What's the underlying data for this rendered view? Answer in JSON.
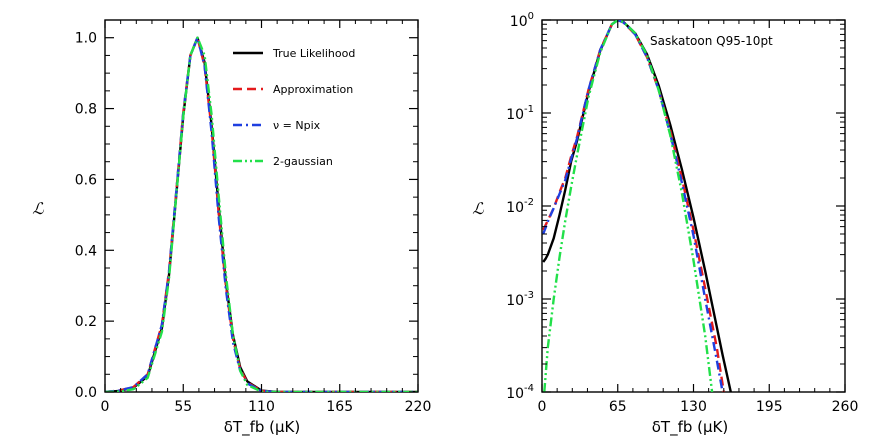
{
  "chart_data": [
    {
      "type": "line",
      "xlabel": "δT_fb (μK)",
      "ylabel": "ℒ",
      "xlim": [
        0,
        220
      ],
      "ylim": [
        0,
        1.05
      ],
      "yscale": "linear",
      "xticks": [
        "0",
        "55",
        "110",
        "165",
        "220"
      ],
      "yticks": [
        "0.0",
        "0.2",
        "0.4",
        "0.6",
        "0.8",
        "1.0"
      ],
      "legend": [
        "True Likelihood",
        "Approximation",
        "ν = Npix",
        "2-gaussian"
      ],
      "legend_position": "top-right",
      "series": [
        {
          "name": "True Likelihood",
          "color": "#000000",
          "style": "solid",
          "x": [
            0,
            10,
            20,
            30,
            40,
            45,
            50,
            55,
            60,
            65,
            70,
            75,
            80,
            85,
            90,
            95,
            100,
            110,
            120,
            130,
            140,
            150,
            220
          ],
          "y": [
            0,
            0.003,
            0.012,
            0.045,
            0.18,
            0.33,
            0.55,
            0.78,
            0.95,
            1.0,
            0.93,
            0.75,
            0.52,
            0.31,
            0.16,
            0.07,
            0.03,
            0.004,
            0.0005,
            0,
            0,
            0,
            0
          ]
        },
        {
          "name": "Approximation",
          "color": "#e41a1c",
          "style": "dashed",
          "x": [
            0,
            10,
            20,
            30,
            40,
            45,
            50,
            55,
            60,
            65,
            70,
            75,
            80,
            85,
            90,
            95,
            100,
            110,
            120,
            130,
            140,
            150,
            220
          ],
          "y": [
            0,
            0.004,
            0.014,
            0.05,
            0.19,
            0.34,
            0.56,
            0.79,
            0.95,
            1.0,
            0.92,
            0.74,
            0.5,
            0.3,
            0.15,
            0.065,
            0.027,
            0.003,
            0.0003,
            0,
            0,
            0,
            0
          ]
        },
        {
          "name": "ν = Npix",
          "color": "#1f3fe0",
          "style": "dashdot",
          "x": [
            0,
            10,
            20,
            30,
            40,
            45,
            50,
            55,
            60,
            65,
            70,
            75,
            80,
            85,
            90,
            95,
            100,
            110,
            120,
            130,
            140,
            150,
            220
          ],
          "y": [
            0,
            0.004,
            0.014,
            0.05,
            0.19,
            0.34,
            0.56,
            0.79,
            0.95,
            1.0,
            0.92,
            0.73,
            0.49,
            0.29,
            0.14,
            0.06,
            0.024,
            0.003,
            0.0003,
            0,
            0,
            0,
            0
          ]
        },
        {
          "name": "2-gaussian",
          "color": "#22e04a",
          "style": "dashdotdot",
          "x": [
            0,
            10,
            20,
            30,
            40,
            45,
            50,
            55,
            60,
            65,
            70,
            75,
            80,
            85,
            90,
            95,
            100,
            110,
            120,
            130,
            140,
            150,
            220
          ],
          "y": [
            0,
            0.001,
            0.008,
            0.04,
            0.17,
            0.32,
            0.55,
            0.78,
            0.95,
            1.0,
            0.95,
            0.78,
            0.55,
            0.33,
            0.16,
            0.06,
            0.02,
            0.001,
            0,
            0,
            0,
            0,
            0
          ]
        }
      ]
    },
    {
      "type": "line",
      "xlabel": "δT_fb (μK)",
      "ylabel": "ℒ",
      "xlim": [
        0,
        260
      ],
      "ylim": [
        0.0001,
        1
      ],
      "yscale": "log",
      "xticks": [
        "0",
        "65",
        "130",
        "195",
        "260"
      ],
      "yticks": [
        {
          "base": "10",
          "exp": "0"
        },
        {
          "base": "10",
          "exp": "-1"
        },
        {
          "base": "10",
          "exp": "-2"
        },
        {
          "base": "10",
          "exp": "-3"
        },
        {
          "base": "10",
          "exp": "-4"
        }
      ],
      "annotation": "Saskatoon Q95-10pt",
      "series": [
        {
          "name": "True Likelihood",
          "color": "#000000",
          "style": "solid",
          "x": [
            1,
            3,
            5,
            10,
            15,
            20,
            25,
            30,
            40,
            50,
            60,
            65,
            70,
            80,
            90,
            100,
            110,
            120,
            130,
            140,
            150,
            155,
            162
          ],
          "y": [
            0.0025,
            0.0027,
            0.003,
            0.0045,
            0.008,
            0.015,
            0.03,
            0.05,
            0.17,
            0.47,
            0.9,
            1.0,
            0.95,
            0.72,
            0.43,
            0.2,
            0.075,
            0.025,
            0.0075,
            0.002,
            0.0005,
            0.00025,
            0.0001
          ]
        },
        {
          "name": "Approximation",
          "color": "#e41a1c",
          "style": "dashed",
          "x": [
            1,
            3,
            5,
            10,
            15,
            20,
            25,
            30,
            40,
            50,
            60,
            65,
            70,
            80,
            90,
            100,
            110,
            120,
            130,
            140,
            150,
            156
          ],
          "y": [
            0.0055,
            0.0062,
            0.007,
            0.0095,
            0.014,
            0.02,
            0.034,
            0.055,
            0.18,
            0.48,
            0.9,
            1.0,
            0.94,
            0.7,
            0.4,
            0.18,
            0.065,
            0.02,
            0.0055,
            0.0013,
            0.0003,
            0.0001
          ]
        },
        {
          "name": "ν = Npix",
          "color": "#1f3fe0",
          "style": "dashdot",
          "x": [
            1,
            3,
            5,
            10,
            15,
            20,
            25,
            30,
            40,
            50,
            60,
            65,
            70,
            80,
            90,
            100,
            110,
            120,
            130,
            140,
            150,
            155
          ],
          "y": [
            0.005,
            0.0058,
            0.0068,
            0.0095,
            0.0135,
            0.019,
            0.032,
            0.053,
            0.18,
            0.48,
            0.9,
            1.0,
            0.94,
            0.7,
            0.4,
            0.18,
            0.06,
            0.018,
            0.0048,
            0.001,
            0.00022,
            0.0001
          ]
        },
        {
          "name": "2-gaussian",
          "color": "#22e04a",
          "style": "dashdotdot",
          "x": [
            2,
            5,
            10,
            15,
            20,
            25,
            30,
            40,
            50,
            60,
            65,
            70,
            80,
            90,
            100,
            110,
            120,
            130,
            140,
            146
          ],
          "y": [
            0.0001,
            0.0003,
            0.001,
            0.0028,
            0.007,
            0.016,
            0.035,
            0.15,
            0.45,
            0.9,
            1.0,
            0.95,
            0.72,
            0.42,
            0.18,
            0.058,
            0.014,
            0.0026,
            0.0004,
            0.0001
          ]
        }
      ]
    }
  ]
}
